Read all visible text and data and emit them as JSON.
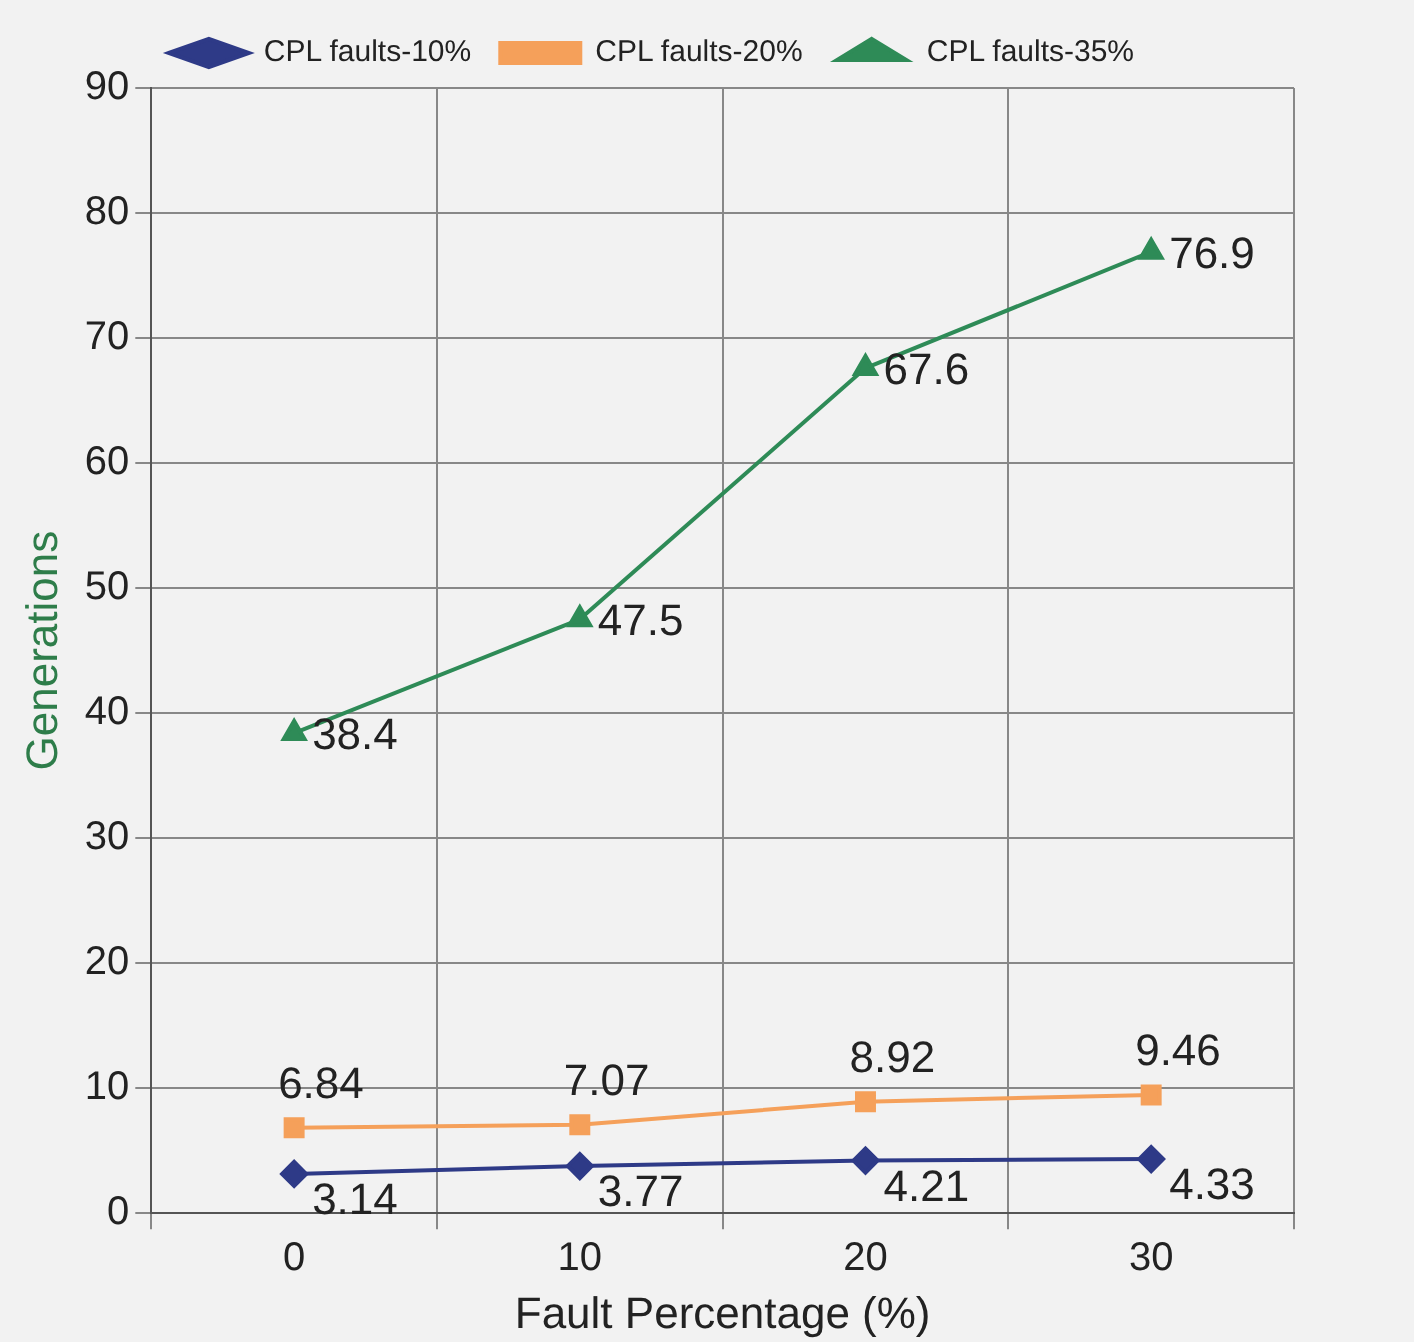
{
  "chart_data": {
    "type": "line",
    "xlabel": "Fault Percentage (%)",
    "ylabel": "Generations",
    "categories": [
      "0",
      "10",
      "20",
      "30"
    ],
    "series": [
      {
        "name": "CPL faults-10%",
        "color": "#2e3a87",
        "marker": "diamond",
        "values": [
          3.14,
          3.77,
          4.21,
          4.33
        ]
      },
      {
        "name": "CPL faults-20%",
        "color": "#f5a05a",
        "marker": "square",
        "values": [
          6.84,
          7.07,
          8.92,
          9.46
        ]
      },
      {
        "name": "CPL faults-35%",
        "color": "#2e8b57",
        "marker": "triangle",
        "values": [
          38.4,
          47.5,
          67.6,
          76.9
        ]
      }
    ],
    "ylim": [
      0,
      90
    ],
    "yticks": [
      0,
      10,
      20,
      30,
      40,
      50,
      60,
      70,
      80,
      90
    ],
    "grid": true,
    "legend": "top",
    "data_labels": true
  }
}
